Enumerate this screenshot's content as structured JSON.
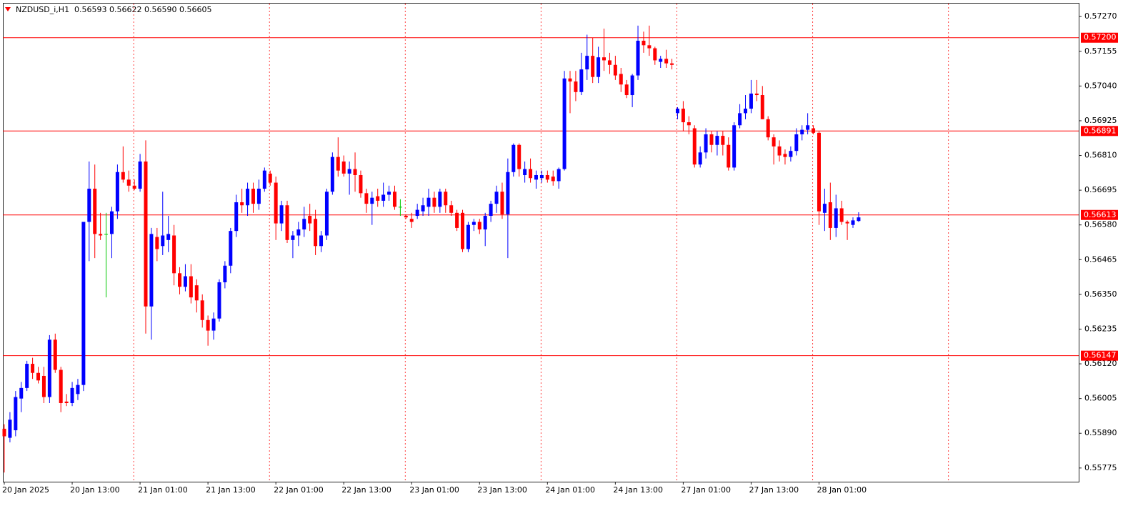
{
  "chart_data": {
    "type": "candlestick",
    "title": "NZDUSD_i,H1",
    "header_values": "0.56593 0.56622 0.56590 0.56605",
    "up_color": "#0000ff",
    "down_color": "#ff0000",
    "doji_color": "#00c800",
    "line_color": "#ff0000",
    "ylim": [
      0.55732,
      0.57313
    ],
    "yticks": [
      {
        "value": 0.5727,
        "label": "0.57270"
      },
      0.57155,
      {
        "value": 0.5704,
        "label": "0.57040"
      },
      0.56925,
      {
        "value": 0.5681,
        "label": "0.56810"
      },
      0.56695,
      {
        "value": 0.5658,
        "label": "0.56580"
      },
      0.56465,
      {
        "value": 0.5635,
        "label": "0.56350"
      },
      0.56235,
      {
        "value": 0.5612,
        "label": "0.56120"
      },
      0.56005,
      {
        "value": 0.5589,
        "label": "0.55890"
      },
      0.55775
    ],
    "hlines": [
      {
        "value": 0.572,
        "label": "0.57200"
      },
      0.56891,
      0.56613,
      0.56147
    ],
    "categories": [
      "20 Jan 2025",
      null,
      null,
      null,
      null,
      null,
      null,
      null,
      null,
      null,
      null,
      null,
      "20 Jan 13:00",
      null,
      null,
      null,
      null,
      null,
      null,
      null,
      null,
      null,
      null,
      null,
      "21 Jan 01:00",
      null,
      null,
      null,
      null,
      null,
      null,
      null,
      null,
      null,
      null,
      null,
      "21 Jan 13:00",
      null,
      null,
      null,
      null,
      null,
      null,
      null,
      null,
      null,
      null,
      null,
      "22 Jan 01:00",
      null,
      null,
      null,
      null,
      null,
      null,
      null,
      null,
      null,
      null,
      null,
      "22 Jan 13:00",
      null,
      null,
      null,
      null,
      null,
      null,
      null,
      null,
      null,
      null,
      null,
      "23 Jan 01:00",
      null,
      null,
      null,
      null,
      null,
      null,
      null,
      null,
      null,
      null,
      null,
      "23 Jan 13:00",
      null,
      null,
      null,
      null,
      null,
      null,
      null,
      null,
      null,
      null,
      null,
      "24 Jan 01:00",
      null,
      null,
      null,
      null,
      null,
      null,
      null,
      null,
      null,
      null,
      null,
      "24 Jan 13:00",
      null,
      null,
      null,
      null,
      null,
      null,
      null,
      null,
      null,
      null,
      null,
      "27 Jan 01:00",
      null,
      null,
      null,
      null,
      null,
      null,
      null,
      null,
      null,
      null,
      null,
      "27 Jan 13:00",
      null,
      null,
      null,
      null,
      null,
      null,
      null,
      null,
      null,
      null,
      null,
      "28 Jan 01:00",
      null,
      null,
      null,
      null,
      null,
      null,
      null
    ],
    "open": [
      0.55905,
      0.55875,
      0.559,
      0.56005,
      0.5604,
      0.5612,
      0.5609,
      0.5608,
      0.5601,
      0.562,
      0.561,
      0.55995,
      0.5599,
      0.5602,
      0.5605,
      0.5659,
      0.567,
      0.5655,
      0.5655,
      0.5655,
      0.56625,
      0.56755,
      0.5673,
      0.5671,
      0.567,
      0.5679,
      0.5631,
      0.5654,
      0.5651,
      0.5653,
      0.56545,
      0.5642,
      0.56375,
      0.5641,
      0.5638,
      0.5633,
      0.56265,
      0.5623,
      0.5627,
      0.5639,
      0.56445,
      0.5656,
      0.56655,
      0.56645,
      0.567,
      0.5665,
      0.567,
      0.5675,
      0.5672,
      0.56585,
      0.56645,
      0.5653,
      0.56545,
      0.56565,
      0.5661,
      0.566,
      0.5651,
      0.56545,
      0.5669,
      0.56805,
      0.5679,
      0.5675,
      0.56765,
      0.56745,
      0.56685,
      0.5665,
      0.56675,
      0.5666,
      0.5668,
      0.5669,
      0.5664,
      0.5661,
      0.566,
      0.5661,
      0.56625,
      0.5664,
      0.5667,
      0.5664,
      0.5669,
      0.56645,
      0.5662,
      0.5662,
      0.565,
      0.5658,
      0.5659,
      0.56565,
      0.5661,
      0.5665,
      0.5669,
      0.56615,
      0.56755,
      0.56845,
      0.56745,
      0.56765,
      0.5673,
      0.56735,
      0.56745,
      0.5674,
      0.56725,
      0.56765,
      0.57065,
      0.57055,
      0.5702,
      0.57095,
      0.5714,
      0.5707,
      0.57135,
      0.57125,
      0.5711,
      0.5708,
      0.57045,
      0.5701,
      0.57075,
      0.5719,
      0.57175,
      0.57165,
      0.5712,
      0.5713,
      0.57115,
      0.5695,
      0.56965,
      0.5692,
      0.569,
      0.5678,
      0.5682,
      0.5688,
      0.56845,
      0.56875,
      0.56845,
      0.5677,
      0.5691,
      0.5695,
      0.56965,
      0.57015,
      0.5701,
      0.5693,
      0.5687,
      0.5684,
      0.56815,
      0.56805,
      0.56825,
      0.5688,
      0.56895,
      0.569,
      0.56885,
      0.5662,
      0.56655,
      0.5657,
      0.56635,
      0.5659,
      0.5658,
      0.56593
    ],
    "high": [
      0.5592,
      0.5596,
      0.5603,
      0.5606,
      0.5613,
      0.5614,
      0.5611,
      0.5611,
      0.56215,
      0.5622,
      0.5611,
      0.5602,
      0.5606,
      0.5607,
      0.5659,
      0.5679,
      0.5678,
      0.5662,
      0.5662,
      0.5664,
      0.5678,
      0.5684,
      0.5676,
      0.5673,
      0.56815,
      0.5686,
      0.5657,
      0.5657,
      0.5669,
      0.5661,
      0.5658,
      0.5644,
      0.5645,
      0.5645,
      0.564,
      0.5635,
      0.5628,
      0.5629,
      0.564,
      0.5646,
      0.5657,
      0.5668,
      0.567,
      0.5672,
      0.5672,
      0.5673,
      0.5677,
      0.5676,
      0.5674,
      0.5666,
      0.5666,
      0.5656,
      0.5659,
      0.5664,
      0.5665,
      0.5663,
      0.5656,
      0.567,
      0.5682,
      0.5687,
      0.5681,
      0.5679,
      0.5682,
      0.5676,
      0.567,
      0.5669,
      0.567,
      0.5672,
      0.5671,
      0.5671,
      0.56665,
      0.56615,
      0.5662,
      0.5665,
      0.5667,
      0.567,
      0.5669,
      0.567,
      0.567,
      0.5666,
      0.5663,
      0.5663,
      0.5659,
      0.566,
      0.566,
      0.5662,
      0.5666,
      0.5671,
      0.5672,
      0.568,
      0.5685,
      0.5685,
      0.5679,
      0.568,
      0.5676,
      0.5676,
      0.5676,
      0.5676,
      0.5677,
      0.5709,
      0.5709,
      0.5709,
      0.5715,
      0.5721,
      0.572,
      0.5717,
      0.5723,
      0.5715,
      0.5714,
      0.571,
      0.5706,
      0.5708,
      0.5724,
      0.5722,
      0.5724,
      0.5717,
      0.5714,
      0.5716,
      0.5713,
      0.5697,
      0.5699,
      0.5694,
      0.5691,
      0.5684,
      0.569,
      0.5689,
      0.5689,
      0.5689,
      0.5687,
      0.5692,
      0.5698,
      0.5701,
      0.5706,
      0.5706,
      0.5704,
      0.5694,
      0.5688,
      0.5686,
      0.5683,
      0.5684,
      0.569,
      0.5691,
      0.5695,
      0.5691,
      0.5689,
      0.567,
      0.5672,
      0.5668,
      0.5666,
      0.56595,
      0.56605,
      0.56622
    ],
    "low": [
      0.5576,
      0.5586,
      0.5588,
      0.5596,
      0.5603,
      0.5607,
      0.56055,
      0.5599,
      0.5599,
      0.5609,
      0.5596,
      0.5598,
      0.5598,
      0.56,
      0.5603,
      0.5646,
      0.5647,
      0.5653,
      0.5634,
      0.5647,
      0.566,
      0.5672,
      0.5669,
      0.56695,
      0.5669,
      0.5622,
      0.562,
      0.5646,
      0.5648,
      0.5649,
      0.5638,
      0.5635,
      0.5636,
      0.5632,
      0.5629,
      0.5624,
      0.5618,
      0.562,
      0.5626,
      0.5637,
      0.5642,
      0.5654,
      0.5662,
      0.5661,
      0.5662,
      0.5663,
      0.5669,
      0.5671,
      0.5653,
      0.5656,
      0.5652,
      0.5647,
      0.5651,
      0.5654,
      0.5656,
      0.5648,
      0.5649,
      0.5653,
      0.5668,
      0.5674,
      0.5674,
      0.5668,
      0.5669,
      0.5667,
      0.5662,
      0.5658,
      0.5664,
      0.5664,
      0.5666,
      0.5663,
      0.5661,
      0.566,
      0.5657,
      0.566,
      0.5661,
      0.5661,
      0.5662,
      0.5662,
      0.5662,
      0.5661,
      0.5656,
      0.5649,
      0.5649,
      0.5656,
      0.5655,
      0.5651,
      0.5659,
      0.5662,
      0.566,
      0.5647,
      0.5674,
      0.5674,
      0.5672,
      0.5672,
      0.567,
      0.5672,
      0.5672,
      0.5671,
      0.567,
      0.5676,
      0.5695,
      0.5699,
      0.5701,
      0.5706,
      0.5705,
      0.5705,
      0.5709,
      0.5708,
      0.5706,
      0.5702,
      0.57,
      0.5697,
      0.5706,
      0.5715,
      0.5714,
      0.5711,
      0.571,
      0.571,
      0.57095,
      0.5693,
      0.5689,
      0.5688,
      0.5677,
      0.5677,
      0.568,
      0.5682,
      0.5681,
      0.5681,
      0.5676,
      0.5676,
      0.569,
      0.5693,
      0.5695,
      0.5699,
      0.5693,
      0.5686,
      0.5678,
      0.5679,
      0.5678,
      0.5679,
      0.5681,
      0.5686,
      0.5688,
      0.5688,
      0.5658,
      0.5656,
      0.5653,
      0.5654,
      0.5658,
      0.5653,
      0.5657,
      0.5659
    ],
    "close": [
      0.5588,
      0.55935,
      0.5601,
      0.5604,
      0.5612,
      0.5609,
      0.56065,
      0.5601,
      0.562,
      0.561,
      0.5599,
      0.5599,
      0.5604,
      0.5605,
      0.5659,
      0.567,
      0.5655,
      0.56545,
      0.5655,
      0.56625,
      0.56755,
      0.5673,
      0.5671,
      0.567,
      0.5679,
      0.5631,
      0.5655,
      0.565,
      0.56545,
      0.5655,
      0.5642,
      0.56375,
      0.5641,
      0.5634,
      0.5633,
      0.56265,
      0.5623,
      0.5627,
      0.5639,
      0.56445,
      0.5656,
      0.56655,
      0.56645,
      0.567,
      0.5665,
      0.567,
      0.5676,
      0.5672,
      0.56585,
      0.56645,
      0.5653,
      0.56545,
      0.56565,
      0.566,
      0.56585,
      0.5651,
      0.56545,
      0.5669,
      0.56805,
      0.5676,
      0.5675,
      0.56765,
      0.56745,
      0.56685,
      0.5665,
      0.5667,
      0.5666,
      0.5668,
      0.5669,
      0.5664,
      0.5664,
      0.56605,
      0.5659,
      0.5663,
      0.56645,
      0.5667,
      0.5664,
      0.5669,
      0.56645,
      0.5662,
      0.5657,
      0.565,
      0.5658,
      0.5659,
      0.56565,
      0.5661,
      0.5665,
      0.5669,
      0.56615,
      0.56755,
      0.56845,
      0.56765,
      0.56765,
      0.56735,
      0.56745,
      0.56745,
      0.5673,
      0.56725,
      0.56765,
      0.57065,
      0.57055,
      0.5702,
      0.57095,
      0.5714,
      0.5707,
      0.57135,
      0.57125,
      0.5711,
      0.57075,
      0.57045,
      0.5701,
      0.57075,
      0.5719,
      0.57175,
      0.57165,
      0.57125,
      0.5713,
      0.57115,
      0.5711,
      0.56965,
      0.5692,
      0.5691,
      0.5678,
      0.5682,
      0.5688,
      0.56845,
      0.56875,
      0.56845,
      0.5677,
      0.5691,
      0.5695,
      0.56965,
      0.57015,
      0.5701,
      0.5693,
      0.5687,
      0.5684,
      0.5681,
      0.56805,
      0.56825,
      0.5688,
      0.56895,
      0.5691,
      0.56885,
      0.56625,
      0.5665,
      0.5657,
      0.56635,
      0.5659,
      0.56585,
      0.56595,
      0.56605
    ]
  }
}
